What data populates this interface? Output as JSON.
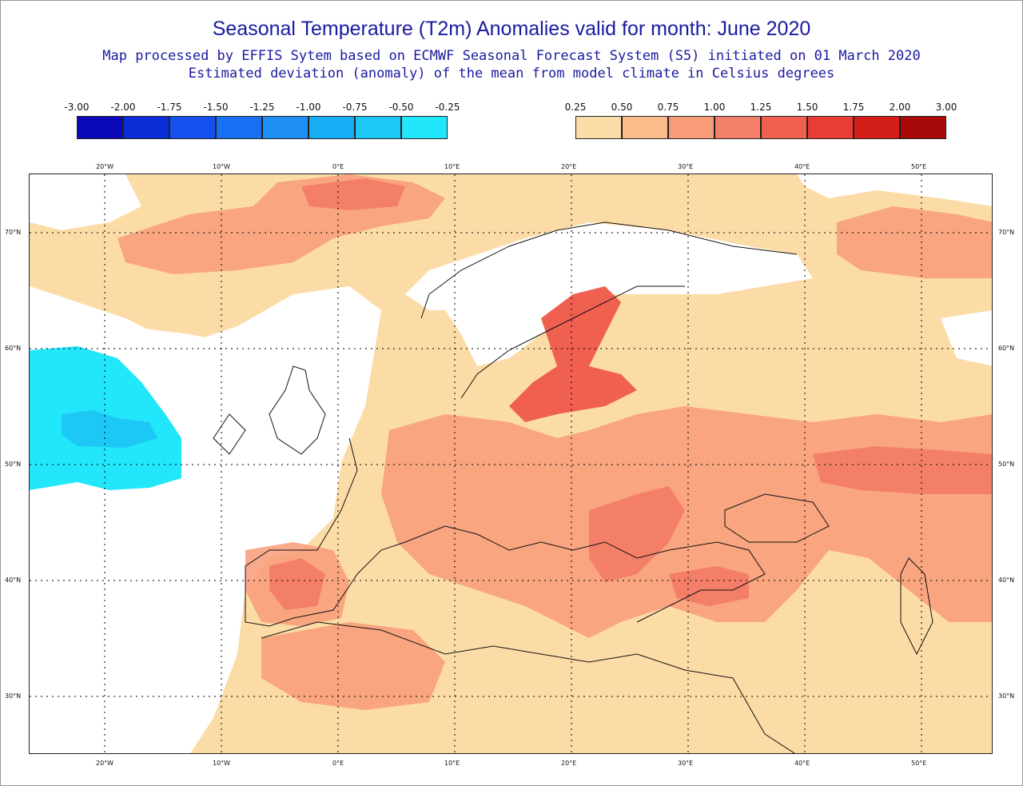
{
  "title": "Seasonal Temperature (T2m) Anomalies valid for month: June 2020",
  "subtitle1": "Map processed by EFFIS Sytem based on ECMWF Seasonal Forecast System (S5) initiated on 01 March 2020",
  "subtitle2": "Estimated deviation (anomaly) of the mean from model climate in Celsius degrees",
  "legend_negative": {
    "labels": [
      "-3.00",
      "-2.00",
      "-1.75",
      "-1.50",
      "-1.25",
      "-1.00",
      "-0.75",
      "-0.50",
      "-0.25"
    ],
    "colors": [
      "#0a0ab8",
      "#0c2ed8",
      "#1450f0",
      "#1a70f2",
      "#1e90f4",
      "#18aef6",
      "#1ec8f6",
      "#22e6fa"
    ]
  },
  "legend_positive": {
    "labels": [
      "0.25",
      "0.50",
      "0.75",
      "1.00",
      "1.25",
      "1.50",
      "1.75",
      "2.00",
      "3.00"
    ],
    "colors": [
      "#fcdca6",
      "#fbbc8c",
      "#f89b78",
      "#f47f68",
      "#f06050",
      "#e83e36",
      "#d41e1a",
      "#a80a0a"
    ]
  },
  "map": {
    "lon_labels": [
      "20°W",
      "10°W",
      "0°E",
      "10°E",
      "20°E",
      "30°E",
      "40°E",
      "50°E"
    ],
    "lat_labels": [
      "70°N",
      "60°N",
      "50°N",
      "40°N",
      "30°N"
    ]
  }
}
